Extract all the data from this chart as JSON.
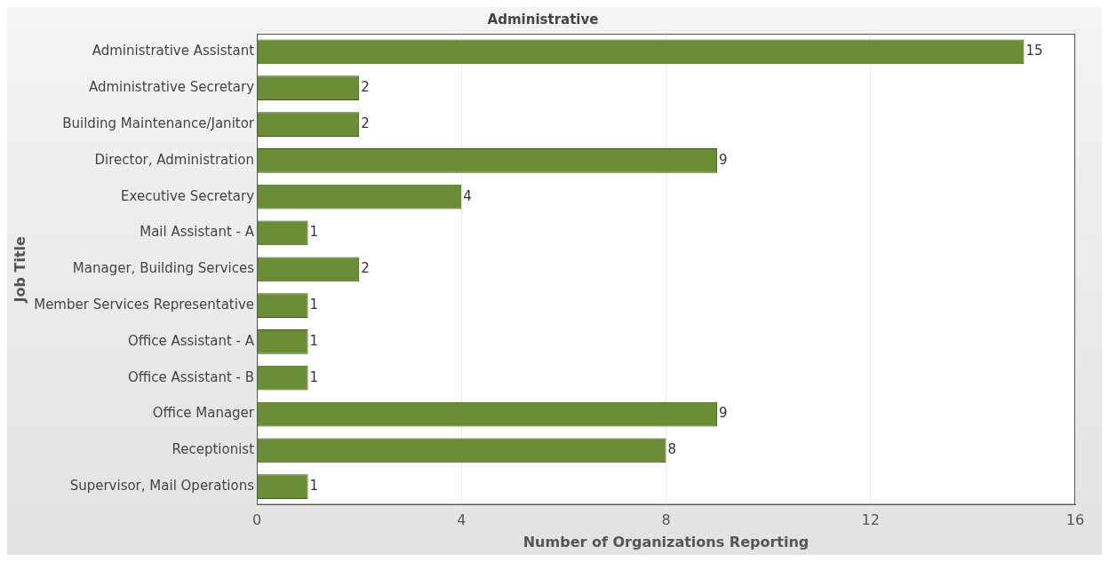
{
  "chart_data": {
    "type": "bar",
    "orientation": "horizontal",
    "title": "Administrative",
    "xlabel": "Number of Organizations Reporting",
    "ylabel": "Job Title",
    "categories": [
      "Administrative Assistant",
      "Administrative Secretary",
      "Building Maintenance/Janitor",
      "Director, Administration",
      "Executive Secretary",
      "Mail Assistant - A",
      "Manager, Building Services",
      "Member Services Representative",
      "Office Assistant - A",
      "Office Assistant - B",
      "Office Manager",
      "Receptionist",
      "Supervisor, Mail Operations"
    ],
    "values": [
      15,
      2,
      2,
      9,
      4,
      1,
      2,
      1,
      1,
      1,
      9,
      8,
      1
    ],
    "color": "#6a8d35",
    "xlim": [
      0,
      16
    ],
    "xticks": [
      0,
      4,
      8,
      12,
      16
    ],
    "grid": "x",
    "data_labels": true,
    "legend": false
  }
}
